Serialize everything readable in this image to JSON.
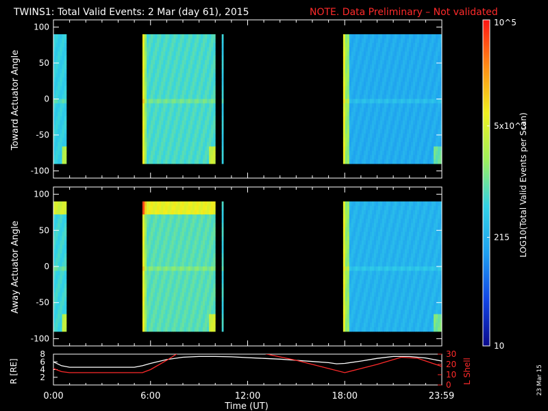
{
  "header": {
    "title": "TWINS1: Total Valid Events:  2 Mar (day  61), 2015",
    "note": "NOTE. Data Preliminary – Not validated"
  },
  "side_date": "23 Mar 15",
  "colorbar": {
    "label": "LOG10(Total Valid Events per Scan)",
    "ticks": [
      "10",
      "215",
      "5x10^3",
      "10^5"
    ],
    "tick_values": [
      10,
      215,
      5000,
      100000
    ],
    "scale": "log",
    "colors": [
      "#0a0a8c",
      "#1246e6",
      "#1ea0f0",
      "#32d2e6",
      "#9ef05a",
      "#f0f01e",
      "#ff8c14",
      "#ff1414"
    ]
  },
  "chart_data": [
    {
      "type": "heatmap",
      "name": "toward",
      "ylabel": "Toward Actuator Angle",
      "ylim": [
        -110,
        110
      ],
      "yticks": [
        100,
        50,
        0,
        -50,
        -100
      ],
      "x_unit": "hours UT",
      "xlim": [
        0,
        24
      ],
      "angle_range": [
        -90,
        90
      ],
      "blocks": [
        {
          "x": [
            0.0,
            0.8
          ],
          "level": 0.42
        },
        {
          "x": [
            5.5,
            10.0
          ],
          "level": 0.46
        },
        {
          "x": [
            10.4,
            10.5
          ],
          "level": 0.42
        },
        {
          "x": [
            17.9,
            24.0
          ],
          "level": 0.32
        }
      ]
    },
    {
      "type": "heatmap",
      "name": "away",
      "ylabel": "Away Actuator Angle",
      "ylim": [
        -110,
        110
      ],
      "yticks": [
        100,
        50,
        0,
        -50,
        -100
      ],
      "x_unit": "hours UT",
      "xlim": [
        0,
        24
      ],
      "angle_range": [
        -90,
        90
      ],
      "blocks": [
        {
          "x": [
            0.0,
            0.8
          ],
          "level": 0.44
        },
        {
          "x": [
            5.5,
            10.0
          ],
          "level": 0.48
        },
        {
          "x": [
            10.4,
            10.5
          ],
          "level": 0.44
        },
        {
          "x": [
            17.9,
            24.0
          ],
          "level": 0.34
        }
      ]
    },
    {
      "type": "line",
      "name": "orbit",
      "xlabel": "Time (UT)",
      "xtick_labels": [
        "0:00",
        "6:00",
        "12:00",
        "18:00",
        "23:59"
      ],
      "xtick_values": [
        0,
        6,
        12,
        18,
        23.98
      ],
      "xlim": [
        0,
        24
      ],
      "y_left": {
        "label": "R [RE]",
        "ylim": [
          0,
          8
        ],
        "ticks": [
          8,
          6,
          4,
          2
        ],
        "color": "#ffffff"
      },
      "y_right": {
        "label": "L Shell",
        "ylim": [
          0,
          30
        ],
        "ticks": [
          30,
          20,
          10,
          0
        ],
        "color": "#ff2a2a"
      },
      "series": [
        {
          "axis": "left",
          "x": [
            0,
            0.5,
            1,
            2,
            3,
            4,
            5,
            5.5,
            6,
            7,
            8,
            9,
            10,
            11,
            12,
            13,
            14,
            15,
            16,
            17,
            17.5,
            18,
            19,
            20,
            21,
            22,
            23,
            24
          ],
          "y": [
            6.0,
            5.0,
            4.6,
            4.6,
            4.6,
            4.6,
            4.6,
            5.0,
            5.6,
            6.6,
            7.2,
            7.4,
            7.4,
            7.3,
            7.1,
            6.9,
            6.7,
            6.4,
            6.1,
            5.8,
            5.5,
            5.6,
            6.2,
            6.9,
            7.4,
            7.4,
            7.0,
            6.2
          ]
        },
        {
          "axis": "right",
          "x": [
            0,
            0.5,
            1,
            5.5,
            6,
            7,
            7.7,
            null,
            12.9,
            15,
            18,
            20,
            21.5,
            22.5,
            24
          ],
          "y": [
            16,
            13,
            12,
            12,
            15,
            24,
            31,
            null,
            31,
            24,
            12,
            20,
            27,
            26,
            18
          ]
        }
      ]
    }
  ]
}
